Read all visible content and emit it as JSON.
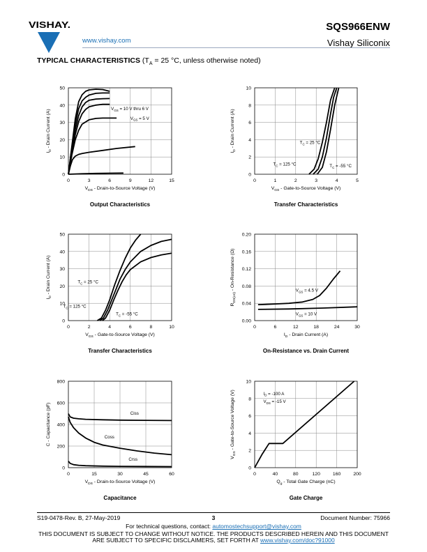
{
  "header": {
    "brand_url": "www.vishay.com",
    "part_number": "SQS966ENW",
    "company": "Vishay Siliconix",
    "logo_text": "VISHAY.",
    "brand_color": "#1a6fb5"
  },
  "section": {
    "title": "TYPICAL CHARACTERISTICS",
    "cond_pre": " (T",
    "cond_sub": "A",
    "cond_post": " = 25 °C, unless otherwise noted)"
  },
  "footer": {
    "left": "S19-0478-Rev. B, 27-May-2019",
    "page": "3",
    "right": "Document Number: 75966",
    "tech_text": "For technical questions, contact: ",
    "tech_email": "automostechsupport@vishay.com",
    "notice1": "THIS DOCUMENT IS SUBJECT TO CHANGE WITHOUT NOTICE. THE PRODUCTS DESCRIBED HEREIN AND THIS DOCUMENT",
    "notice2_pre": "ARE SUBJECT TO SPECIFIC DISCLAIMERS, SET FORTH AT ",
    "notice2_link": "www.vishay.com/doc?91000"
  },
  "chart_data": [
    {
      "type": "line",
      "title": "Output Characteristics",
      "xlabel": "VDS - Drain-to-Source Voltage (V)",
      "ylabel": "ID - Drain Current (A)",
      "xlim": [
        0,
        15
      ],
      "ylim": [
        0,
        50
      ],
      "xticks": [
        "0",
        "3",
        "6",
        "9",
        "12",
        "15"
      ],
      "yticks": [
        "0",
        "10",
        "20",
        "30",
        "40",
        "50"
      ],
      "grid": true,
      "annotations": [
        {
          "text": "VGS = 10 V thru 6 V",
          "x": 6.2,
          "y": 37
        },
        {
          "text": "VGS = 5 V",
          "x": 9,
          "y": 31.5
        }
      ],
      "series": [
        {
          "x": [
            0,
            0.5,
            1,
            1.5,
            2,
            2.5,
            3,
            4,
            5,
            6
          ],
          "y": [
            0,
            16,
            32,
            42,
            46,
            48,
            48.8,
            49.2,
            49,
            48
          ]
        },
        {
          "x": [
            0,
            0.5,
            1,
            1.5,
            2,
            2.5,
            3,
            4,
            5,
            6
          ],
          "y": [
            0,
            15,
            29,
            38,
            42.5,
            44.5,
            45.8,
            46.8,
            47,
            47
          ]
        },
        {
          "x": [
            0,
            0.5,
            1,
            1.5,
            2,
            2.5,
            3,
            4,
            5,
            6
          ],
          "y": [
            0,
            14,
            26,
            34,
            39,
            41.5,
            42.8,
            43.5,
            43.7,
            43.8
          ]
        },
        {
          "x": [
            0,
            0.5,
            1,
            1.5,
            2,
            2.5,
            3,
            4,
            5,
            6
          ],
          "y": [
            0,
            12.5,
            23,
            30.5,
            35,
            37.5,
            39,
            40,
            40.5,
            40.5
          ]
        },
        {
          "x": [
            0,
            0.5,
            1,
            1.5,
            2,
            3,
            4,
            5,
            6,
            7
          ],
          "y": [
            0,
            11,
            20,
            25.5,
            29,
            31.5,
            32.3,
            32.5,
            32.5,
            32.5
          ]
        },
        {
          "x": [
            0,
            0.3,
            0.6,
            1,
            1.5,
            2,
            3,
            5,
            7,
            9.7
          ],
          "y": [
            0,
            5,
            8.5,
            10.5,
            11.5,
            12,
            12.7,
            13.8,
            14.9,
            16
          ]
        },
        {
          "x": [
            0,
            2,
            4,
            6,
            8
          ],
          "y": [
            0,
            0.3,
            0.5,
            0.6,
            0.7
          ]
        }
      ]
    },
    {
      "type": "line",
      "title": "Transfer Characteristics",
      "xlabel": "VGS - Gate-to-Source Voltage (V)",
      "ylabel": "ID - Drain Current (A)",
      "xlim": [
        0,
        5
      ],
      "ylim": [
        0,
        10
      ],
      "xticks": [
        "0",
        "1",
        "2",
        "3",
        "4",
        "5"
      ],
      "yticks": [
        "0",
        "2",
        "4",
        "6",
        "8",
        "10"
      ],
      "grid": true,
      "annotations": [
        {
          "text": "TC = 25 °C",
          "x": 2.2,
          "y": 3.5
        },
        {
          "text": "TC = 125 °C",
          "x": 0.9,
          "y": 1.0
        },
        {
          "text": "TC = -55 °C",
          "x": 3.65,
          "y": 0.8
        }
      ],
      "series": [
        {
          "name": "TC = 125 °C",
          "x": [
            2.65,
            2.9,
            3.1,
            3.3,
            3.5,
            3.7,
            3.9
          ],
          "y": [
            0,
            0.6,
            1.8,
            3.7,
            6,
            8.6,
            10
          ]
        },
        {
          "name": "TC = 25 °C",
          "x": [
            2.85,
            3.1,
            3.3,
            3.5,
            3.7,
            3.85,
            4.0
          ],
          "y": [
            0,
            0.6,
            2,
            4.2,
            7,
            8.9,
            10
          ]
        },
        {
          "name": "TC = -55 °C",
          "x": [
            3.05,
            3.3,
            3.5,
            3.7,
            3.9,
            4.1
          ],
          "y": [
            0,
            0.8,
            2.6,
            5.2,
            8,
            10
          ]
        }
      ]
    },
    {
      "type": "line",
      "title": "Transfer Characteristics",
      "xlabel": "VGS - Gate-to-Source Voltage (V)",
      "ylabel": "ID - Drain Current (A)",
      "xlim": [
        0,
        10
      ],
      "ylim": [
        0,
        50
      ],
      "xticks": [
        "0",
        "2",
        "4",
        "6",
        "8",
        "10"
      ],
      "yticks": [
        "0",
        "10",
        "20",
        "30",
        "40",
        "50"
      ],
      "grid": true,
      "annotations": [
        {
          "text": "TC = 25 °C",
          "x": 0.9,
          "y": 21.5
        },
        {
          "text": "TC = 125 °C",
          "x": -0.5,
          "y": 7.5
        },
        {
          "text": "TC = -55 °C",
          "x": 4.6,
          "y": 3
        }
      ],
      "series": [
        {
          "name": "TC = 125 °C",
          "x": [
            2.8,
            3.2,
            3.6,
            4,
            4.5,
            5,
            5.5,
            6,
            6.5,
            7
          ],
          "y": [
            0,
            1.5,
            6,
            12,
            21,
            29,
            36,
            42,
            46.5,
            50
          ]
        },
        {
          "name": "TC = 25 °C",
          "x": [
            3.05,
            3.4,
            3.8,
            4.2,
            4.6,
            5,
            5.5,
            6,
            7,
            8,
            9,
            10
          ],
          "y": [
            0,
            1.5,
            6,
            12,
            18,
            24,
            29.5,
            34,
            40,
            43.5,
            45.8,
            47
          ]
        },
        {
          "name": "TC = -55 °C",
          "x": [
            3.3,
            3.6,
            4,
            4.4,
            4.8,
            5.2,
            5.6,
            6,
            7,
            8,
            9,
            10
          ],
          "y": [
            0,
            1.5,
            6,
            12,
            17.5,
            22.5,
            26.5,
            29.5,
            34,
            36.5,
            38,
            39
          ]
        }
      ]
    },
    {
      "type": "line",
      "title": "On-Resistance vs. Drain Current",
      "xlabel": "ID - Drain Current (A)",
      "ylabel": "RDS(on) - On-Resistance (Ω)",
      "xlim": [
        0,
        30
      ],
      "ylim": [
        0,
        0.2
      ],
      "xticks": [
        "0",
        "6",
        "12",
        "18",
        "24",
        "30"
      ],
      "yticks": [
        "0.00",
        "0.04",
        "0.08",
        "0.12",
        "0.16",
        "0.20"
      ],
      "grid": true,
      "annotations": [
        {
          "text": "VGS = 4.5 V",
          "x": 12,
          "y": 0.067
        },
        {
          "text": "VGS = 10 V",
          "x": 12,
          "y": 0.012
        }
      ],
      "series": [
        {
          "name": "VGS = 4.5 V",
          "x": [
            1,
            5,
            10,
            14,
            17,
            19,
            21,
            23,
            25
          ],
          "y": [
            0.037,
            0.038,
            0.04,
            0.043,
            0.049,
            0.058,
            0.075,
            0.096,
            0.115
          ]
        },
        {
          "name": "VGS = 10 V",
          "x": [
            1,
            10,
            20,
            30
          ],
          "y": [
            0.026,
            0.027,
            0.029,
            0.032
          ]
        }
      ]
    },
    {
      "type": "line",
      "title": "Capacitance",
      "xlabel": "VDS - Drain-to-Source Voltage (V)",
      "ylabel": "C - Capacitance (pF)",
      "xlim": [
        0,
        60
      ],
      "ylim": [
        0,
        800
      ],
      "xticks": [
        "0",
        "15",
        "30",
        "45",
        "60"
      ],
      "yticks": [
        "0",
        "200",
        "400",
        "600",
        "800"
      ],
      "grid": true,
      "annotations": [
        {
          "text": "Ciss",
          "x": 36,
          "y": 490
        },
        {
          "text": "Coss",
          "x": 21,
          "y": 270
        },
        {
          "text": "Crss",
          "x": 35,
          "y": 65
        }
      ],
      "series": [
        {
          "name": "Ciss",
          "x": [
            0,
            1,
            3,
            6,
            10,
            20,
            30,
            45,
            60
          ],
          "y": [
            500,
            470,
            458,
            452,
            448,
            443,
            440,
            438,
            436
          ]
        },
        {
          "name": "Coss",
          "x": [
            0,
            1,
            3,
            6,
            10,
            15,
            20,
            30,
            40,
            50,
            60
          ],
          "y": [
            470,
            420,
            370,
            320,
            275,
            235,
            210,
            180,
            155,
            135,
            120
          ]
        },
        {
          "name": "Crss",
          "x": [
            0,
            1,
            3,
            6,
            10,
            20,
            30,
            45,
            60
          ],
          "y": [
            60,
            40,
            28,
            22,
            18,
            14,
            12,
            11,
            10
          ]
        }
      ]
    },
    {
      "type": "line",
      "title": "Gate Charge",
      "xlabel": "Qg - Total Gate Charge (nC)",
      "ylabel": "VGS - Gate-to-Source Voltage (V)",
      "xlim": [
        0,
        200
      ],
      "ylim": [
        0,
        10
      ],
      "xticks": [
        "0",
        "40",
        "80",
        "120",
        "160",
        "200"
      ],
      "yticks": [
        "0",
        "2",
        "4",
        "6",
        "8",
        "10"
      ],
      "grid": true,
      "annotations": [
        {
          "text": "ID = -100 A",
          "x": 17,
          "y": 8.4
        },
        {
          "text": "VDS = -15 V",
          "x": 17,
          "y": 7.5
        }
      ],
      "series": [
        {
          "x": [
            0,
            14,
            28,
            55,
            194
          ],
          "y": [
            0,
            1.5,
            2.8,
            2.8,
            10
          ]
        }
      ]
    }
  ]
}
